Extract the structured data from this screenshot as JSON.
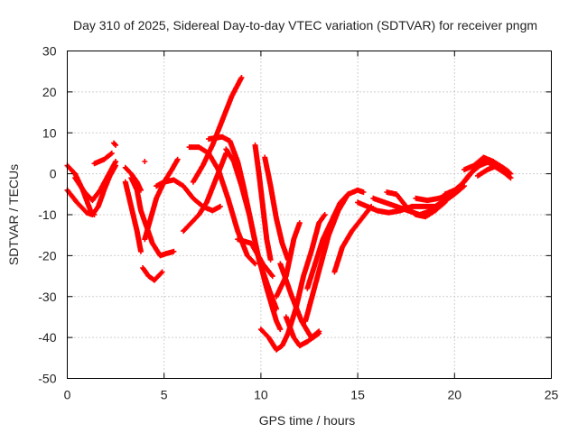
{
  "chart_data": {
    "type": "scatter",
    "title": "Day 310 of 2025, Sidereal Day-to-day VTEC variation (SDTVAR) for receiver pngm",
    "xlabel": "GPS time / hours",
    "ylabel": "SDTVAR / TECUs",
    "xlim": [
      0,
      25
    ],
    "ylim": [
      -50,
      30
    ],
    "x_ticks": [
      0,
      5,
      10,
      15,
      20,
      25
    ],
    "y_ticks": [
      -50,
      -40,
      -30,
      -20,
      -10,
      0,
      10,
      20,
      30
    ],
    "grid": true,
    "marker": "plus",
    "color": "#ff0000",
    "series": [
      {
        "points": [
          [
            0,
            2
          ],
          [
            0.4,
            0
          ],
          [
            0.8,
            -4
          ],
          [
            1.2,
            -9
          ],
          [
            1.4,
            -10
          ]
        ]
      },
      {
        "points": [
          [
            0,
            -4
          ],
          [
            0.5,
            -7
          ],
          [
            1.0,
            -9.5
          ],
          [
            1.3,
            -10
          ],
          [
            1.6,
            -8
          ],
          [
            1.9,
            -4
          ],
          [
            2.2,
            -0.5
          ],
          [
            2.5,
            2
          ]
        ]
      },
      {
        "points": [
          [
            0.4,
            -1
          ],
          [
            0.9,
            -4.5
          ],
          [
            1.3,
            -6.5
          ],
          [
            1.7,
            -4
          ],
          [
            2.1,
            -0.5
          ],
          [
            2.5,
            3
          ]
        ]
      },
      {
        "points": [
          [
            1.4,
            2.5
          ],
          [
            1.9,
            3.5
          ],
          [
            2.3,
            5
          ]
        ]
      },
      {
        "points": [
          [
            2.4,
            7.5
          ],
          [
            2.5,
            7
          ]
        ]
      },
      {
        "points": [
          [
            3.0,
            -2
          ],
          [
            3.3,
            -8
          ],
          [
            3.6,
            -14
          ],
          [
            3.8,
            -19
          ]
        ]
      },
      {
        "points": [
          [
            3.0,
            1.5
          ],
          [
            3.3,
            0
          ],
          [
            3.6,
            -2
          ],
          [
            3.8,
            -4
          ]
        ]
      },
      {
        "points": [
          [
            3.3,
            -1
          ],
          [
            3.6,
            -4
          ],
          [
            3.8,
            -9
          ],
          [
            4.1,
            -13
          ],
          [
            4.4,
            -17
          ],
          [
            4.8,
            -20
          ],
          [
            5.1,
            -19.5
          ],
          [
            5.5,
            -19
          ]
        ]
      },
      {
        "points": [
          [
            4.0,
            3
          ]
        ]
      },
      {
        "points": [
          [
            3.9,
            -23
          ],
          [
            4.2,
            -25
          ],
          [
            4.5,
            -26
          ],
          [
            4.9,
            -24
          ]
        ]
      },
      {
        "points": [
          [
            4.0,
            -16
          ],
          [
            4.3,
            -11
          ],
          [
            4.6,
            -6
          ],
          [
            5.0,
            -2
          ],
          [
            5.4,
            1
          ],
          [
            5.7,
            3.5
          ]
        ]
      },
      {
        "points": [
          [
            4.6,
            -3
          ],
          [
            5.0,
            -2
          ],
          [
            5.5,
            -1.5
          ],
          [
            6.0,
            -3
          ],
          [
            6.5,
            -6
          ],
          [
            7.0,
            -8
          ],
          [
            7.5,
            -9
          ],
          [
            7.9,
            -8
          ]
        ]
      },
      {
        "points": [
          [
            6.0,
            -14
          ],
          [
            6.4,
            -12
          ],
          [
            6.8,
            -10
          ],
          [
            7.2,
            -7
          ],
          [
            7.7,
            -1
          ],
          [
            8.2,
            5
          ]
        ]
      },
      {
        "points": [
          [
            6.5,
            -2
          ],
          [
            7.0,
            2
          ],
          [
            7.5,
            7
          ],
          [
            8.0,
            13
          ],
          [
            8.5,
            19
          ],
          [
            9.0,
            23.5
          ]
        ]
      },
      {
        "points": [
          [
            6.3,
            6.5
          ],
          [
            6.8,
            6.5
          ],
          [
            7.3,
            5
          ],
          [
            7.8,
            1
          ],
          [
            8.3,
            -6
          ],
          [
            8.8,
            -14
          ],
          [
            9.3,
            -20
          ],
          [
            9.7,
            -22
          ]
        ]
      },
      {
        "points": [
          [
            7.3,
            8.5
          ],
          [
            8.0,
            9
          ],
          [
            8.4,
            8
          ],
          [
            8.8,
            3
          ],
          [
            9.1,
            -3
          ],
          [
            9.5,
            -12
          ],
          [
            9.9,
            -21
          ],
          [
            10.4,
            -28
          ],
          [
            10.8,
            -33
          ]
        ]
      },
      {
        "points": [
          [
            8.2,
            6
          ],
          [
            8.6,
            3
          ],
          [
            9.0,
            -3
          ],
          [
            9.4,
            -10
          ],
          [
            9.8,
            -19
          ],
          [
            10.3,
            -28
          ],
          [
            10.8,
            -36
          ],
          [
            11.0,
            -38
          ]
        ]
      },
      {
        "points": [
          [
            8.8,
            -16
          ],
          [
            9.5,
            -17
          ],
          [
            10.1,
            -22
          ],
          [
            10.6,
            -25
          ]
        ]
      },
      {
        "points": [
          [
            9.7,
            7
          ],
          [
            9.9,
            0
          ],
          [
            10.1,
            -8
          ],
          [
            10.3,
            -16
          ],
          [
            10.5,
            -21
          ]
        ]
      },
      {
        "points": [
          [
            10.2,
            4
          ],
          [
            10.5,
            -3
          ],
          [
            10.8,
            -11
          ],
          [
            11.1,
            -17
          ],
          [
            11.4,
            -21
          ]
        ]
      },
      {
        "points": [
          [
            10.0,
            -38
          ],
          [
            10.4,
            -40
          ],
          [
            10.8,
            -43
          ],
          [
            11.1,
            -42
          ],
          [
            11.4,
            -39
          ],
          [
            11.8,
            -33
          ],
          [
            12.2,
            -25
          ],
          [
            12.6,
            -19
          ],
          [
            13.0,
            -12
          ],
          [
            13.3,
            -10
          ]
        ]
      },
      {
        "points": [
          [
            10.8,
            -30
          ],
          [
            11.3,
            -25
          ],
          [
            11.7,
            -16
          ],
          [
            12.0,
            -12
          ]
        ]
      },
      {
        "points": [
          [
            11.3,
            -35
          ],
          [
            11.7,
            -40
          ],
          [
            12.0,
            -42
          ],
          [
            12.4,
            -41
          ],
          [
            12.7,
            -40
          ],
          [
            13.0,
            -39
          ]
        ]
      },
      {
        "points": [
          [
            11.0,
            -22
          ],
          [
            11.6,
            -30
          ],
          [
            12.1,
            -36
          ],
          [
            12.6,
            -40
          ],
          [
            13.0,
            -38.5
          ]
        ]
      },
      {
        "points": [
          [
            12.3,
            -36
          ],
          [
            12.7,
            -29
          ],
          [
            13.1,
            -22
          ],
          [
            13.5,
            -15
          ],
          [
            14.0,
            -9
          ],
          [
            14.5,
            -5
          ],
          [
            15.0,
            -4
          ],
          [
            15.3,
            -4.5
          ]
        ]
      },
      {
        "points": [
          [
            12.4,
            -28
          ],
          [
            12.8,
            -22
          ],
          [
            13.2,
            -16
          ],
          [
            13.7,
            -11
          ],
          [
            14.1,
            -7
          ],
          [
            14.5,
            -5
          ]
        ]
      },
      {
        "points": [
          [
            13.8,
            -24
          ],
          [
            14.2,
            -18
          ],
          [
            14.7,
            -14
          ],
          [
            15.2,
            -11
          ],
          [
            15.7,
            -8
          ]
        ]
      },
      {
        "points": [
          [
            15.0,
            -7
          ],
          [
            15.5,
            -8
          ],
          [
            16.0,
            -9
          ],
          [
            16.6,
            -9.5
          ],
          [
            17.2,
            -9
          ],
          [
            17.8,
            -8
          ],
          [
            18.4,
            -8
          ],
          [
            19.0,
            -8
          ],
          [
            19.6,
            -6
          ],
          [
            20.0,
            -4
          ]
        ]
      },
      {
        "points": [
          [
            15.8,
            -6
          ],
          [
            16.4,
            -7
          ],
          [
            17.0,
            -8
          ],
          [
            17.6,
            -9
          ],
          [
            18.2,
            -10
          ],
          [
            18.8,
            -9
          ],
          [
            19.4,
            -7
          ],
          [
            20.0,
            -5
          ],
          [
            20.5,
            -3
          ]
        ]
      },
      {
        "points": [
          [
            16.5,
            -4.5
          ],
          [
            17.0,
            -5
          ],
          [
            17.5,
            -8
          ],
          [
            18.0,
            -10
          ],
          [
            18.5,
            -10.5
          ],
          [
            19.0,
            -9
          ],
          [
            19.5,
            -7
          ]
        ]
      },
      {
        "points": [
          [
            18.0,
            -6
          ],
          [
            18.6,
            -6.5
          ],
          [
            19.2,
            -6
          ],
          [
            19.8,
            -5
          ],
          [
            20.3,
            -3
          ],
          [
            20.8,
            0
          ],
          [
            21.3,
            2
          ],
          [
            21.8,
            3
          ],
          [
            22.3,
            2
          ],
          [
            22.8,
            -0.5
          ]
        ]
      },
      {
        "points": [
          [
            19.5,
            -5
          ],
          [
            20.0,
            -4
          ],
          [
            20.5,
            -2
          ],
          [
            21.0,
            1
          ],
          [
            21.5,
            3.5
          ],
          [
            22.0,
            2
          ],
          [
            22.5,
            0.5
          ],
          [
            22.9,
            -1
          ]
        ]
      },
      {
        "points": [
          [
            20.5,
            1
          ],
          [
            21.0,
            2
          ],
          [
            21.5,
            4
          ],
          [
            22.0,
            3
          ],
          [
            22.5,
            1.5
          ],
          [
            22.8,
            0.5
          ]
        ]
      },
      {
        "points": [
          [
            21.2,
            -0.5
          ],
          [
            21.7,
            1
          ],
          [
            22.2,
            2
          ],
          [
            22.6,
            1
          ],
          [
            22.9,
            0
          ]
        ]
      }
    ]
  }
}
